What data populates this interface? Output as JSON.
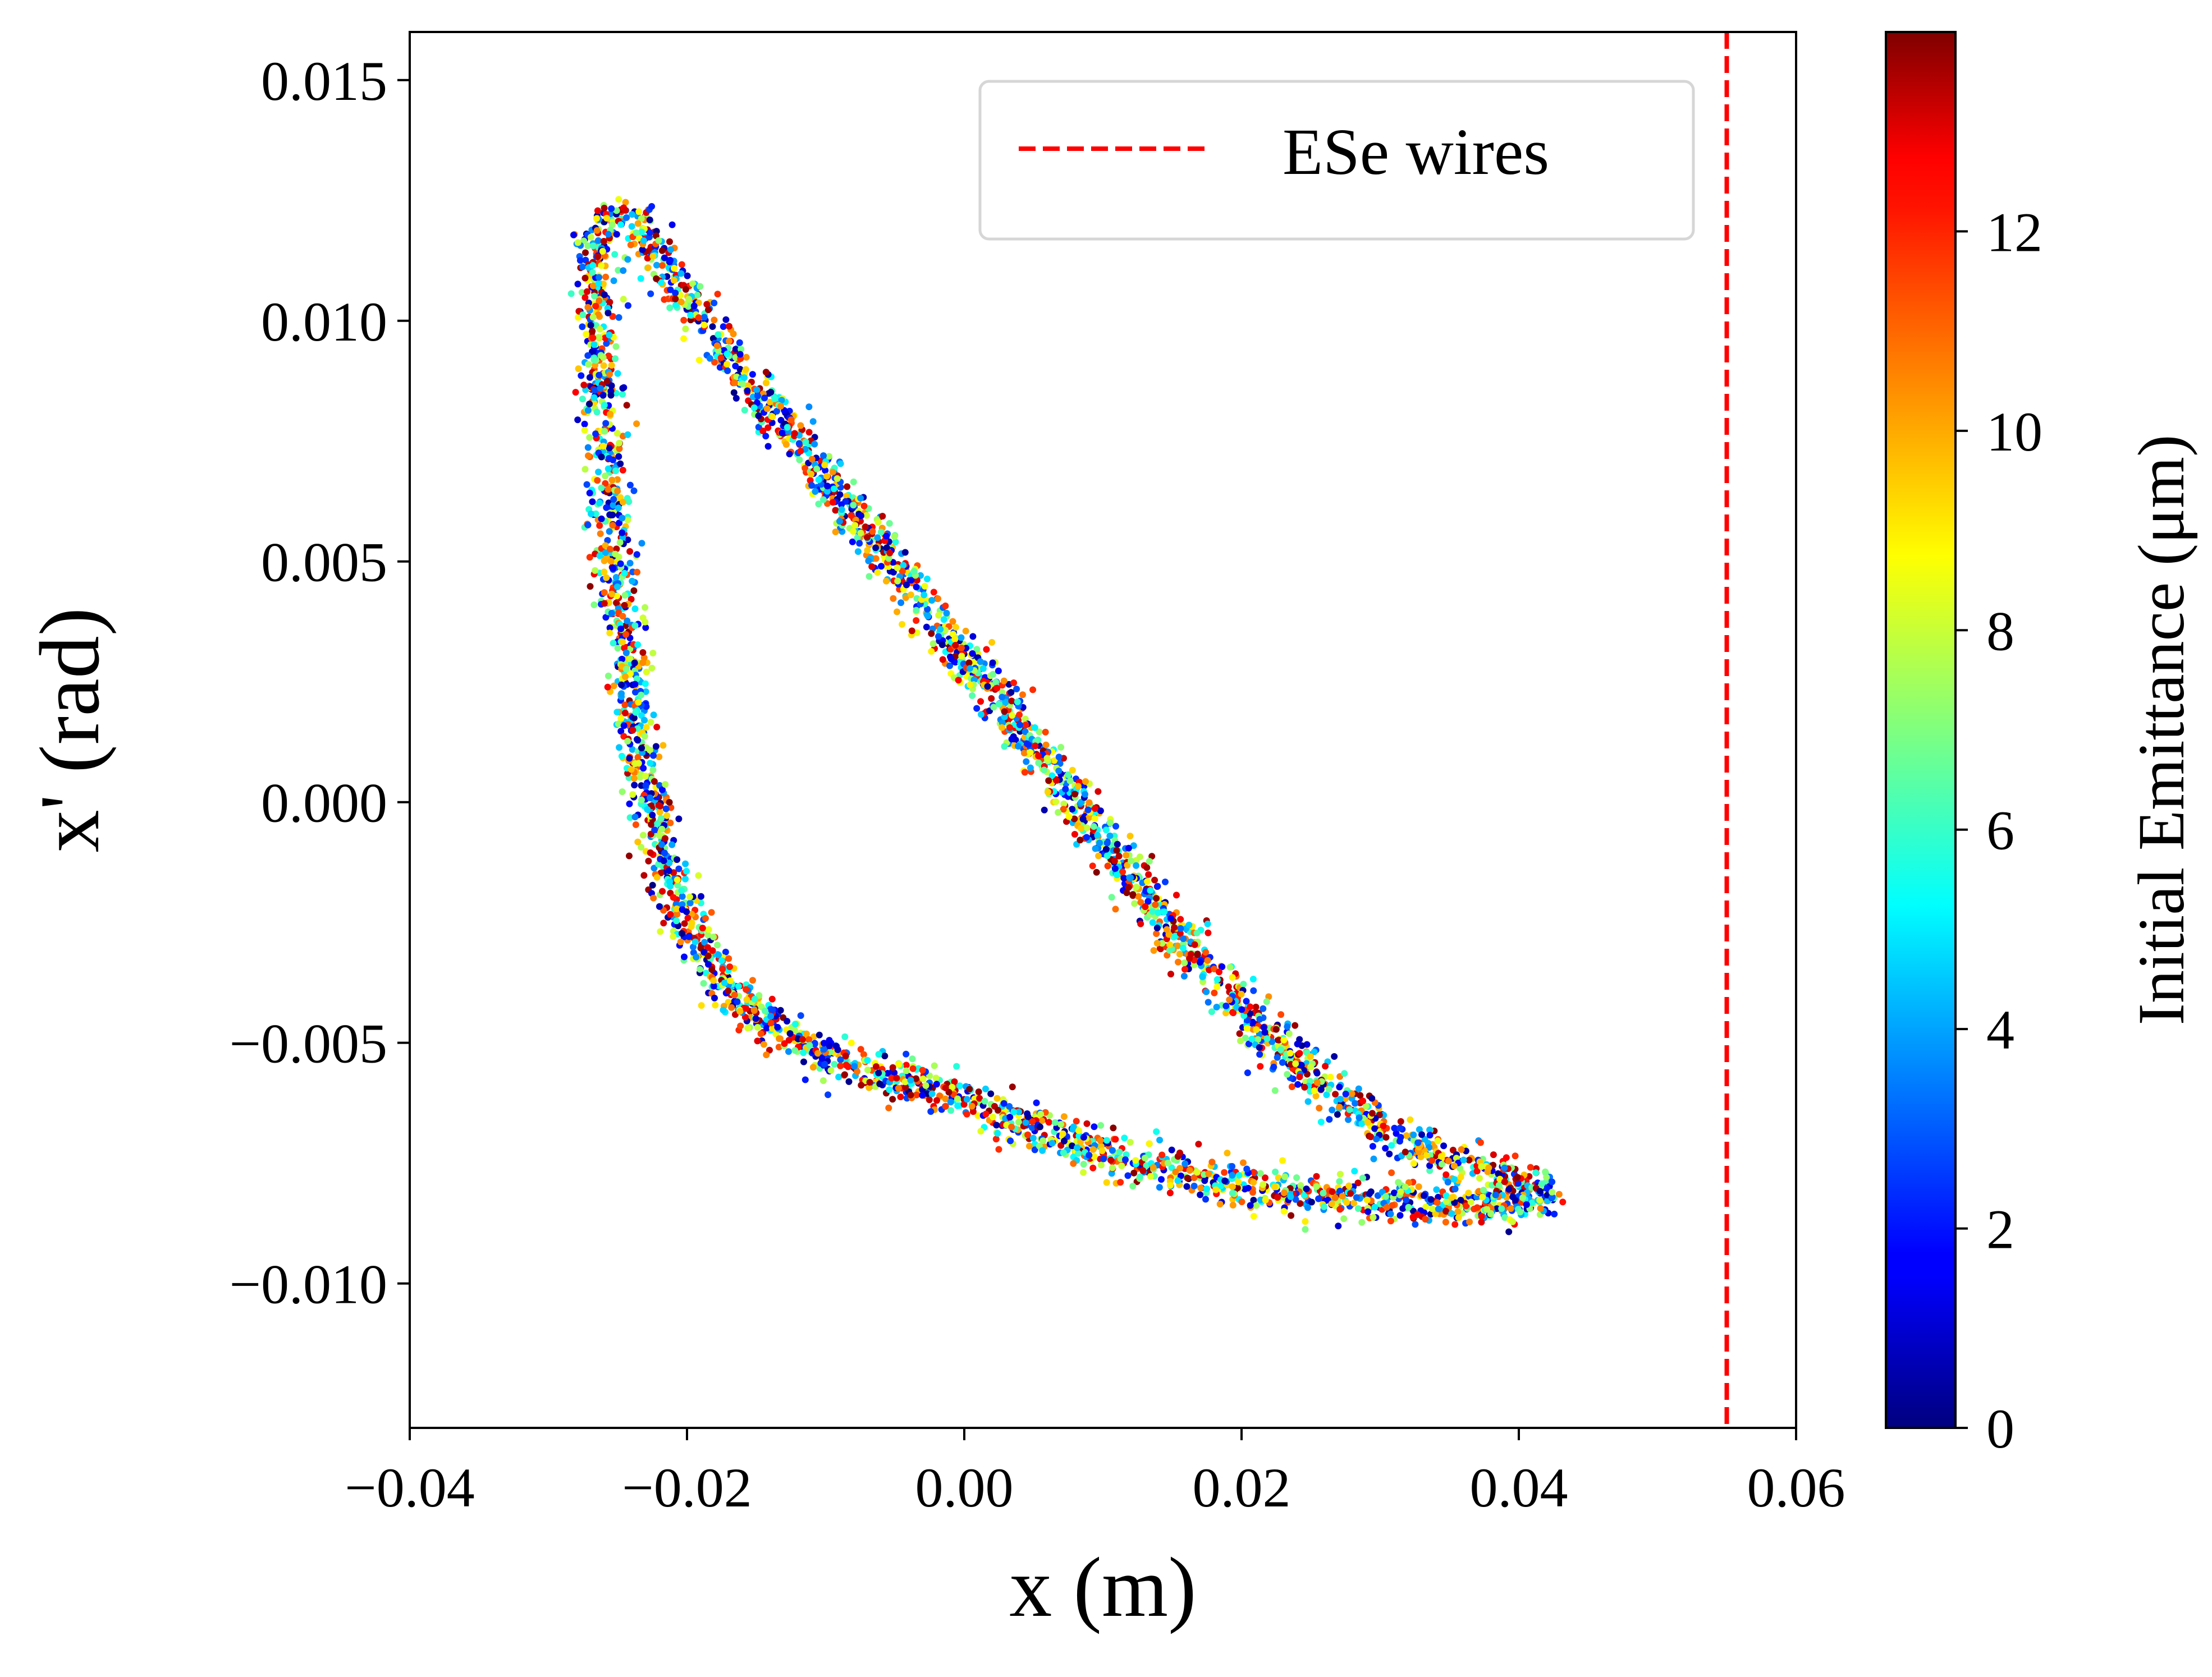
{
  "chart_data": {
    "type": "scatter",
    "xlabel": "x (m)",
    "ylabel": "x' (rad)",
    "xlim": [
      -0.04,
      0.06
    ],
    "ylim": [
      -0.013,
      0.016
    ],
    "xticks": [
      "−0.04",
      "−0.02",
      "0.00",
      "0.02",
      "0.04",
      "0.06"
    ],
    "xtick_values": [
      -0.04,
      -0.02,
      0.0,
      0.02,
      0.04,
      0.06
    ],
    "yticks": [
      "−0.010",
      "−0.005",
      "0.000",
      "0.005",
      "0.010",
      "0.015"
    ],
    "ytick_values": [
      -0.01,
      -0.005,
      0.0,
      0.005,
      0.01,
      0.015
    ],
    "grid": false,
    "phase_space_boundary": [
      [
        -0.0265,
        0.012
      ],
      [
        -0.024,
        0.0122
      ],
      [
        -0.021,
        0.0108
      ],
      [
        -0.015,
        0.0085
      ],
      [
        -0.008,
        0.006
      ],
      [
        0.0,
        0.003
      ],
      [
        0.008,
        0.0
      ],
      [
        0.016,
        -0.003
      ],
      [
        0.024,
        -0.0055
      ],
      [
        0.03,
        -0.0068
      ],
      [
        0.035,
        -0.0075
      ],
      [
        0.0395,
        -0.0078
      ],
      [
        0.0425,
        -0.0081
      ],
      [
        0.038,
        -0.0084
      ],
      [
        0.03,
        -0.0083
      ],
      [
        0.02,
        -0.008
      ],
      [
        0.01,
        -0.0073
      ],
      [
        0.0,
        -0.0062
      ],
      [
        -0.01,
        -0.0053
      ],
      [
        -0.017,
        -0.004
      ],
      [
        -0.021,
        -0.002
      ],
      [
        -0.0235,
        0.001
      ],
      [
        -0.025,
        0.0045
      ],
      [
        -0.0262,
        0.008
      ],
      [
        -0.0265,
        0.012
      ]
    ],
    "particle_count": 4200,
    "reference_line": {
      "x": 0.055,
      "label": "ESe wires",
      "color": "#ff0000",
      "style": "dashed"
    },
    "legend_position": "top-right",
    "colorbar": {
      "label": "Initial Emittance (μm)",
      "min": 0,
      "max": 14,
      "ticks": [
        "0",
        "2",
        "4",
        "6",
        "8",
        "10",
        "12"
      ],
      "tick_values": [
        0,
        2,
        4,
        6,
        8,
        10,
        12
      ],
      "colormap": "jet"
    }
  }
}
